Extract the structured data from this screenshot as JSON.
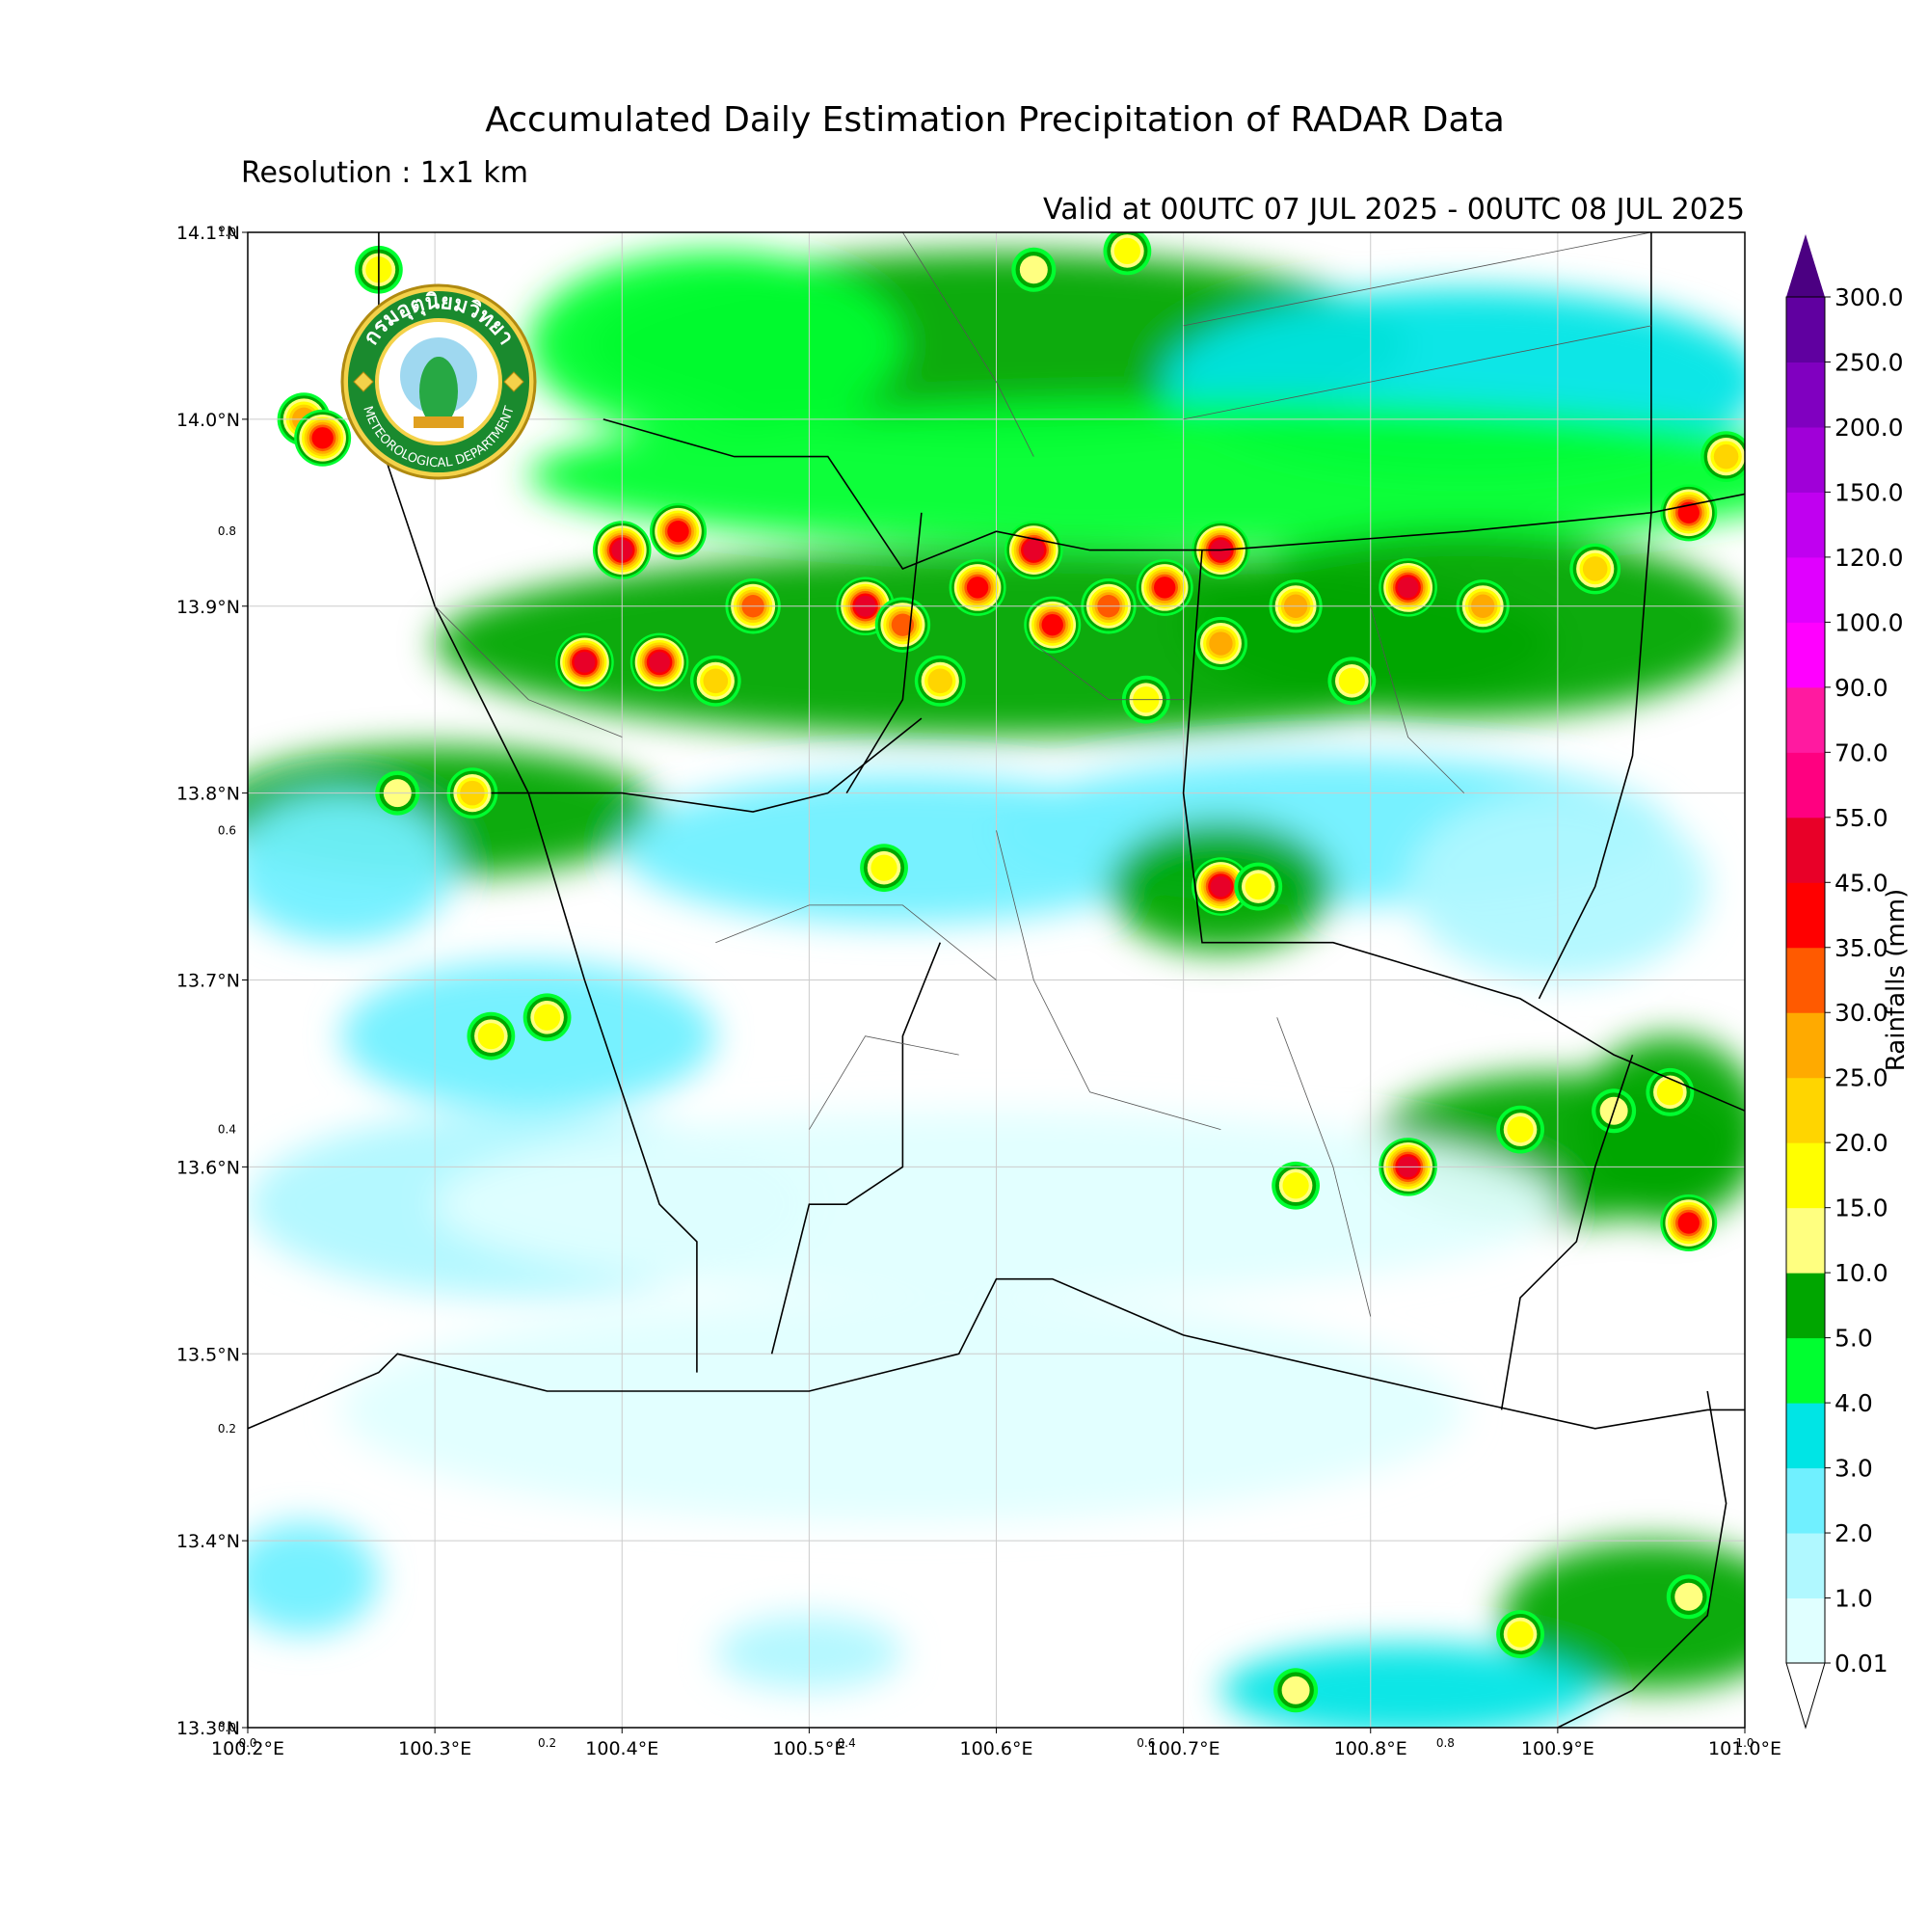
{
  "title": "Accumulated Daily Estimation Precipitation of RADAR Data",
  "resolution": "Resolution : 1x1 km",
  "valid_period": "Valid at 00UTC 07 JUL 2025 - 00UTC 08 JUL 2025",
  "logo": {
    "text_top": "กรมอุตุนิยมวิทยา",
    "text_bottom": "METEOROLOGICAL DEPARTMENT"
  },
  "map": {
    "lon_range": [
      100.2,
      101.0
    ],
    "lat_range": [
      13.3,
      14.1
    ],
    "lon_ticks": [
      {
        "value": 100.2,
        "label": "100.2°E"
      },
      {
        "value": 100.3,
        "label": "100.3°E"
      },
      {
        "value": 100.4,
        "label": "100.4°E"
      },
      {
        "value": 100.5,
        "label": "100.5°E"
      },
      {
        "value": 100.6,
        "label": "100.6°E"
      },
      {
        "value": 100.7,
        "label": "100.7°E"
      },
      {
        "value": 100.8,
        "label": "100.8°E"
      },
      {
        "value": 100.9,
        "label": "100.9°E"
      },
      {
        "value": 101.0,
        "label": "101.0°E"
      }
    ],
    "lat_ticks": [
      {
        "value": 14.1,
        "label": "14.1°N"
      },
      {
        "value": 14.0,
        "label": "14.0°N"
      },
      {
        "value": 13.9,
        "label": "13.9°N"
      },
      {
        "value": 13.8,
        "label": "13.8°N"
      },
      {
        "value": 13.7,
        "label": "13.7°N"
      },
      {
        "value": 13.6,
        "label": "13.6°N"
      },
      {
        "value": 13.5,
        "label": "13.5°N"
      },
      {
        "value": 13.4,
        "label": "13.4°N"
      },
      {
        "value": 13.3,
        "label": "13.3°N"
      }
    ],
    "frac_x_ticks": [
      {
        "value": 0.0,
        "label": "0.0"
      },
      {
        "value": 0.2,
        "label": "0.2"
      },
      {
        "value": 0.4,
        "label": "0.4"
      },
      {
        "value": 0.6,
        "label": "0.6"
      },
      {
        "value": 0.8,
        "label": "0.8"
      },
      {
        "value": 1.0,
        "label": "1.0"
      }
    ],
    "frac_y_ticks": [
      {
        "value": 0.0,
        "label": "0.0"
      },
      {
        "value": 0.2,
        "label": "0.2"
      },
      {
        "value": 0.4,
        "label": "0.4"
      },
      {
        "value": 0.6,
        "label": "0.6"
      },
      {
        "value": 0.8,
        "label": "0.8"
      },
      {
        "value": 1.0,
        "label": "1.0"
      }
    ],
    "rain_cells": [
      {
        "lon": 100.23,
        "lat": 14.0,
        "value": 25
      },
      {
        "lon": 100.24,
        "lat": 13.99,
        "value": 40
      },
      {
        "lon": 100.27,
        "lat": 14.08,
        "value": 15
      },
      {
        "lon": 100.4,
        "lat": 13.93,
        "value": 45
      },
      {
        "lon": 100.43,
        "lat": 13.94,
        "value": 40
      },
      {
        "lon": 100.38,
        "lat": 13.87,
        "value": 50
      },
      {
        "lon": 100.42,
        "lat": 13.87,
        "value": 45
      },
      {
        "lon": 100.47,
        "lat": 13.9,
        "value": 30
      },
      {
        "lon": 100.53,
        "lat": 13.9,
        "value": 45
      },
      {
        "lon": 100.55,
        "lat": 13.89,
        "value": 30
      },
      {
        "lon": 100.59,
        "lat": 13.91,
        "value": 40
      },
      {
        "lon": 100.62,
        "lat": 13.93,
        "value": 45
      },
      {
        "lon": 100.63,
        "lat": 13.89,
        "value": 35
      },
      {
        "lon": 100.66,
        "lat": 13.9,
        "value": 30
      },
      {
        "lon": 100.69,
        "lat": 13.91,
        "value": 40
      },
      {
        "lon": 100.72,
        "lat": 13.93,
        "value": 45
      },
      {
        "lon": 100.76,
        "lat": 13.9,
        "value": 25
      },
      {
        "lon": 100.82,
        "lat": 13.91,
        "value": 45
      },
      {
        "lon": 100.86,
        "lat": 13.9,
        "value": 25
      },
      {
        "lon": 100.92,
        "lat": 13.92,
        "value": 20
      },
      {
        "lon": 100.97,
        "lat": 13.95,
        "value": 35
      },
      {
        "lon": 100.99,
        "lat": 13.98,
        "value": 20
      },
      {
        "lon": 100.32,
        "lat": 13.8,
        "value": 20
      },
      {
        "lon": 100.28,
        "lat": 13.8,
        "value": 12
      },
      {
        "lon": 100.72,
        "lat": 13.75,
        "value": 50
      },
      {
        "lon": 100.74,
        "lat": 13.75,
        "value": 15
      },
      {
        "lon": 100.45,
        "lat": 13.86,
        "value": 20
      },
      {
        "lon": 100.57,
        "lat": 13.86,
        "value": 20
      },
      {
        "lon": 100.68,
        "lat": 13.85,
        "value": 18
      },
      {
        "lon": 100.79,
        "lat": 13.86,
        "value": 15
      },
      {
        "lon": 100.33,
        "lat": 13.67,
        "value": 15
      },
      {
        "lon": 100.36,
        "lat": 13.68,
        "value": 15
      },
      {
        "lon": 100.96,
        "lat": 13.64,
        "value": 15
      },
      {
        "lon": 100.93,
        "lat": 13.63,
        "value": 12
      },
      {
        "lon": 100.82,
        "lat": 13.6,
        "value": 45
      },
      {
        "lon": 100.97,
        "lat": 13.57,
        "value": 40
      },
      {
        "lon": 100.88,
        "lat": 13.62,
        "value": 15
      },
      {
        "lon": 100.76,
        "lat": 13.59,
        "value": 15
      },
      {
        "lon": 100.88,
        "lat": 13.35,
        "value": 15
      },
      {
        "lon": 100.97,
        "lat": 13.37,
        "value": 12
      },
      {
        "lon": 100.76,
        "lat": 13.32,
        "value": 12
      },
      {
        "lon": 100.62,
        "lat": 14.08,
        "value": 12
      },
      {
        "lon": 100.67,
        "lat": 14.09,
        "value": 15
      },
      {
        "lon": 100.72,
        "lat": 13.88,
        "value": 25
      },
      {
        "lon": 100.54,
        "lat": 13.76,
        "value": 15
      }
    ],
    "rain_areas": [
      {
        "lon": 100.6,
        "lat": 14.04,
        "rx": 0.22,
        "ry": 0.05,
        "value": 6
      },
      {
        "lon": 100.45,
        "lat": 14.04,
        "rx": 0.1,
        "ry": 0.05,
        "value": 4
      },
      {
        "lon": 100.85,
        "lat": 14.02,
        "rx": 0.16,
        "ry": 0.05,
        "value": 3
      },
      {
        "lon": 100.7,
        "lat": 13.97,
        "rx": 0.35,
        "ry": 0.04,
        "value": 4
      },
      {
        "lon": 100.6,
        "lat": 13.88,
        "rx": 0.3,
        "ry": 0.05,
        "value": 8
      },
      {
        "lon": 100.85,
        "lat": 13.89,
        "rx": 0.15,
        "ry": 0.05,
        "value": 8
      },
      {
        "lon": 100.3,
        "lat": 13.79,
        "rx": 0.12,
        "ry": 0.035,
        "value": 5
      },
      {
        "lon": 100.25,
        "lat": 13.76,
        "rx": 0.06,
        "ry": 0.04,
        "value": 2
      },
      {
        "lon": 100.55,
        "lat": 13.77,
        "rx": 0.15,
        "ry": 0.04,
        "value": 2
      },
      {
        "lon": 100.78,
        "lat": 13.78,
        "rx": 0.18,
        "ry": 0.04,
        "value": 2
      },
      {
        "lon": 100.72,
        "lat": 13.75,
        "rx": 0.06,
        "ry": 0.035,
        "value": 6
      },
      {
        "lon": 100.35,
        "lat": 13.67,
        "rx": 0.1,
        "ry": 0.04,
        "value": 2.5
      },
      {
        "lon": 100.9,
        "lat": 13.75,
        "rx": 0.08,
        "ry": 0.05,
        "value": 1.5
      },
      {
        "lon": 100.9,
        "lat": 13.61,
        "rx": 0.1,
        "ry": 0.04,
        "value": 5
      },
      {
        "lon": 100.96,
        "lat": 13.62,
        "rx": 0.05,
        "ry": 0.05,
        "value": 6
      },
      {
        "lon": 100.35,
        "lat": 13.58,
        "rx": 0.15,
        "ry": 0.05,
        "value": 1
      },
      {
        "lon": 100.95,
        "lat": 13.36,
        "rx": 0.08,
        "ry": 0.04,
        "value": 5
      },
      {
        "lon": 100.82,
        "lat": 13.32,
        "rx": 0.1,
        "ry": 0.025,
        "value": 3
      },
      {
        "lon": 100.23,
        "lat": 13.38,
        "rx": 0.04,
        "ry": 0.03,
        "value": 2
      },
      {
        "lon": 100.5,
        "lat": 13.34,
        "rx": 0.05,
        "ry": 0.02,
        "value": 1.5
      },
      {
        "lon": 100.55,
        "lat": 13.47,
        "rx": 0.3,
        "ry": 0.06,
        "value": 0.5
      },
      {
        "lon": 100.6,
        "lat": 13.58,
        "rx": 0.3,
        "ry": 0.05,
        "value": 0.3
      }
    ]
  },
  "colorbar": {
    "label": "Rainfalls (mm)",
    "levels": [
      "0.01",
      "1.0",
      "2.0",
      "3.0",
      "4.0",
      "5.0",
      "10.0",
      "15.0",
      "20.0",
      "25.0",
      "30.0",
      "35.0",
      "45.0",
      "55.0",
      "70.0",
      "90.0",
      "100.0",
      "120.0",
      "150.0",
      "200.0",
      "250.0",
      "300.0"
    ],
    "colors": [
      "#e0ffff",
      "#b0f8ff",
      "#70f0ff",
      "#00e5e5",
      "#00ff30",
      "#00a600",
      "#ffff80",
      "#ffff00",
      "#ffd500",
      "#ffaa00",
      "#ff5a00",
      "#ff0000",
      "#e80028",
      "#ff0080",
      "#ff1aa0",
      "#ff00ff",
      "#e000ff",
      "#c000f0",
      "#a000d8",
      "#8000c0",
      "#6000a0"
    ],
    "extend_low_color": "#ffffff",
    "extend_high_color": "#4b0082"
  }
}
